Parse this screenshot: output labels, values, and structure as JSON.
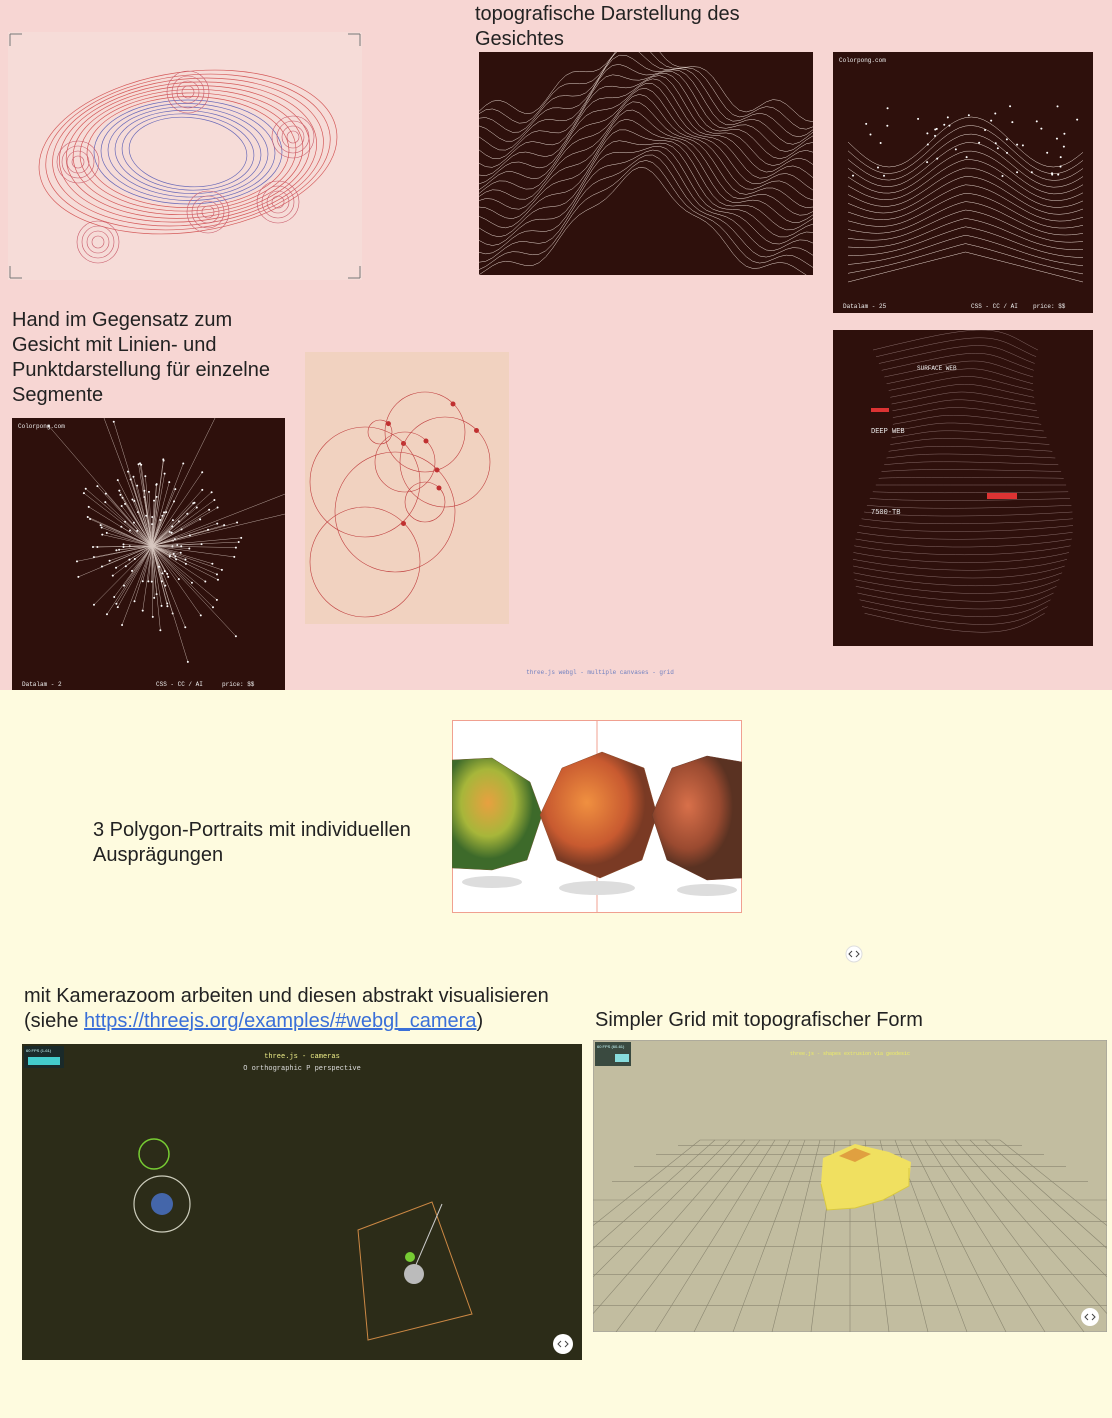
{
  "captions": {
    "face": "topografische Darstellung des Gesichtes",
    "hand": "Hand im Gegensatz zum Gesicht mit Linien- und Punktdarstellung für einzelne Segmente",
    "polygon": "3 Polygon-Portraits mit individuellen Ausprägungen",
    "camera": {
      "text": "mit Kamerazoom arbeiten und diesen abstrakt visualisieren",
      "open": "(siehe ",
      "link": "https://threejs.org/examples/#webgl_camera",
      "close": ")"
    },
    "grid": "Simpler Grid mit topografischer Form"
  },
  "images": {
    "mesh2": {
      "brand": "Colorpong.com",
      "footer": [
        "Datalam - 25",
        "CSS - CC / AI",
        "price: $$"
      ]
    },
    "burst": {
      "brand": "Colorpong.com",
      "footer": [
        "Datalam - 2",
        "CSS - CC / AI",
        "price: $$"
      ]
    },
    "deepweb": {
      "top": "SURFACE WEB",
      "label": "DEEP WEB",
      "size": "7500-TB"
    },
    "grid_note": "three.js webgl - multiple canvases - grid",
    "cameras": {
      "title": "three.js - cameras",
      "subtitle": "O orthographic P perspective",
      "fps": "60 FPS (1-61)"
    },
    "extrude": {
      "title": "three.js - shapes extrusion via geodesic",
      "fps": "60 FPS (60-61)"
    }
  }
}
